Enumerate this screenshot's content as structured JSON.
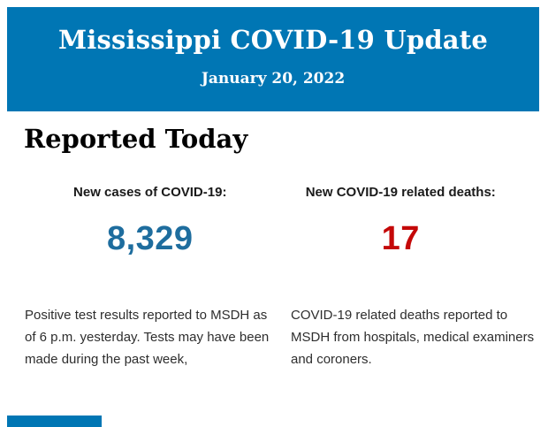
{
  "header": {
    "title": "Mississippi COVID-19 Update",
    "date": "January 20, 2022",
    "background_color": "#0076b4",
    "text_color": "#ffffff"
  },
  "section": {
    "heading": "Reported Today"
  },
  "stats": [
    {
      "label": "New cases of COVID-19:",
      "value": "8,329",
      "value_color": "#1e6d9e",
      "description": "Positive test results reported to MSDH as of 6 p.m. yesterday. Tests may have been made during the past week,"
    },
    {
      "label": "New COVID-19 related deaths:",
      "value": "17",
      "value_color": "#c40808",
      "description": "COVID-19 related deaths reported to MSDH from hospitals, medical examiners and coroners."
    }
  ],
  "footer": {
    "partial_bar_color": "#0076b4"
  }
}
